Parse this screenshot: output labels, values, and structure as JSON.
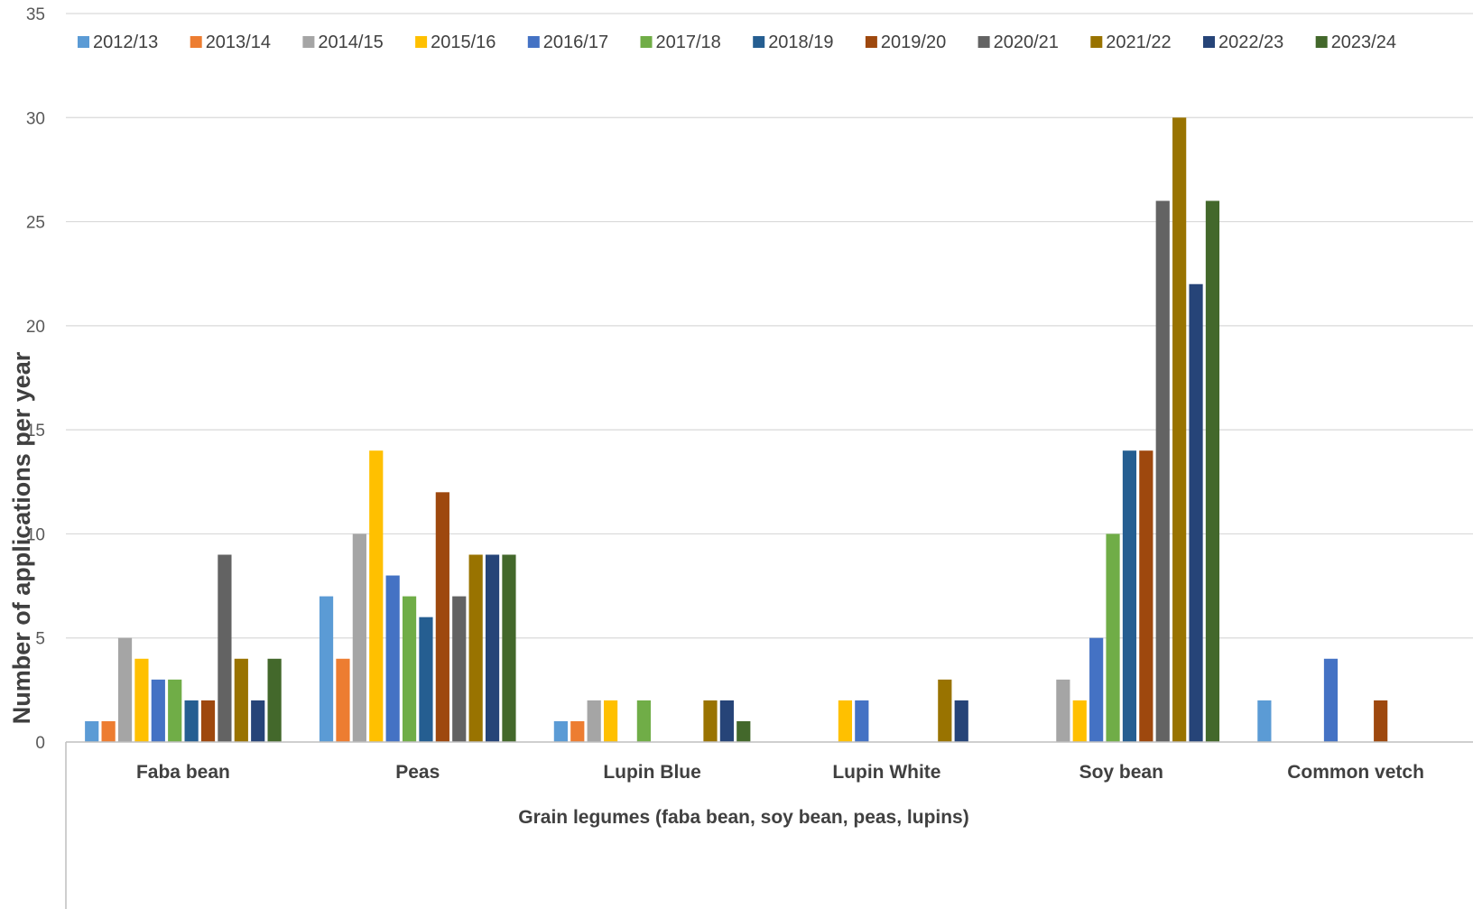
{
  "chart_data": {
    "type": "bar",
    "title": "",
    "xlabel": "Grain legumes (faba bean, soy bean, peas, lupins)",
    "ylabel": "Number of applications per year",
    "ylim": [
      0,
      35
    ],
    "yticks": [
      0,
      5,
      10,
      15,
      20,
      25,
      30,
      35
    ],
    "grid": true,
    "legend": "top",
    "categories": [
      "Faba bean",
      "Peas",
      "Lupin Blue",
      "Lupin White",
      "Soy bean",
      "Common vetch"
    ],
    "series": [
      {
        "name": "2012/13",
        "color": "#5B9BD5",
        "values": [
          1,
          7,
          1,
          0,
          0,
          2
        ]
      },
      {
        "name": "2013/14",
        "color": "#ED7D31",
        "values": [
          1,
          4,
          1,
          0,
          0,
          0
        ]
      },
      {
        "name": "2014/15",
        "color": "#A5A5A5",
        "values": [
          5,
          10,
          2,
          0,
          3,
          0
        ]
      },
      {
        "name": "2015/16",
        "color": "#FFC000",
        "values": [
          4,
          14,
          2,
          2,
          2,
          0
        ]
      },
      {
        "name": "2016/17",
        "color": "#4472C4",
        "values": [
          3,
          8,
          0,
          2,
          5,
          4
        ]
      },
      {
        "name": "2017/18",
        "color": "#70AD47",
        "values": [
          3,
          7,
          2,
          0,
          10,
          0
        ]
      },
      {
        "name": "2018/19",
        "color": "#255E91",
        "values": [
          2,
          6,
          0,
          0,
          14,
          0
        ]
      },
      {
        "name": "2019/20",
        "color": "#9E480E",
        "values": [
          2,
          12,
          0,
          0,
          14,
          2
        ]
      },
      {
        "name": "2020/21",
        "color": "#636363",
        "values": [
          9,
          7,
          0,
          0,
          26,
          0
        ]
      },
      {
        "name": "2021/22",
        "color": "#997300",
        "values": [
          4,
          9,
          2,
          3,
          30,
          0
        ]
      },
      {
        "name": "2022/23",
        "color": "#264478",
        "values": [
          2,
          9,
          2,
          2,
          22,
          0
        ]
      },
      {
        "name": "2023/24",
        "color": "#43682B",
        "values": [
          4,
          9,
          1,
          0,
          26,
          0
        ]
      }
    ]
  }
}
